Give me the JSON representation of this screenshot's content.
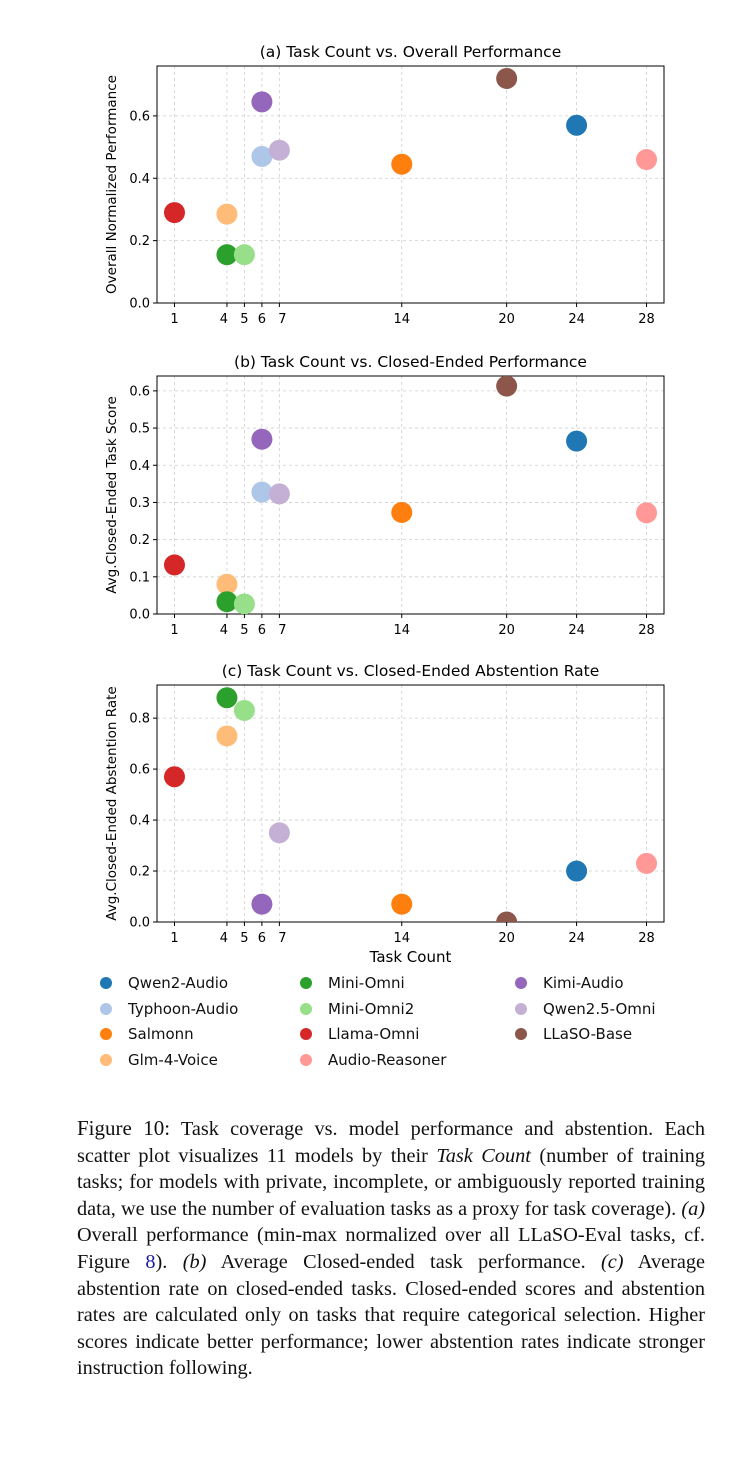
{
  "models": [
    {
      "name": "Qwen2-Audio",
      "color": "#1f77b4",
      "tasks": 24
    },
    {
      "name": "Typhoon-Audio",
      "color": "#aec7e8",
      "tasks": 6
    },
    {
      "name": "Salmonn",
      "color": "#ff7f0e",
      "tasks": 14
    },
    {
      "name": "Glm-4-Voice",
      "color": "#ffbb78",
      "tasks": 4
    },
    {
      "name": "Mini-Omni",
      "color": "#2ca02c",
      "tasks": 4
    },
    {
      "name": "Mini-Omni2",
      "color": "#98df8a",
      "tasks": 5
    },
    {
      "name": "Llama-Omni",
      "color": "#d62728",
      "tasks": 1
    },
    {
      "name": "Audio-Reasoner",
      "color": "#ff9896",
      "tasks": 28
    },
    {
      "name": "Kimi-Audio",
      "color": "#9467bd",
      "tasks": 6
    },
    {
      "name": "Qwen2.5-Omni",
      "color": "#c5b0d5",
      "tasks": 7
    },
    {
      "name": "LLaSO-Base",
      "color": "#8c564b",
      "tasks": 20
    }
  ],
  "chart_data": [
    {
      "type": "scatter",
      "title": "(a) Task Count vs. Overall Performance",
      "xlabel": "",
      "ylabel": "Overall Normalized Performance",
      "xticks": [
        1,
        4,
        5,
        6,
        7,
        14,
        20,
        24,
        28
      ],
      "yticks": [
        "0.0",
        "0.2",
        "0.4",
        "0.6"
      ],
      "xlim": [
        0,
        29
      ],
      "ylim": [
        0,
        0.76
      ],
      "grid": true,
      "values": [
        0.57,
        0.47,
        0.445,
        0.285,
        0.155,
        0.155,
        0.29,
        0.46,
        0.645,
        0.49,
        0.72
      ]
    },
    {
      "type": "scatter",
      "title": "(b) Task Count vs. Closed-Ended Performance",
      "xlabel": "",
      "ylabel": "Avg.Closed-Ended Task Score",
      "xticks": [
        1,
        4,
        5,
        6,
        7,
        14,
        20,
        24,
        28
      ],
      "yticks": [
        "0.0",
        "0.1",
        "0.2",
        "0.3",
        "0.4",
        "0.5",
        "0.6"
      ],
      "xlim": [
        0,
        29
      ],
      "ylim": [
        0,
        0.64
      ],
      "grid": true,
      "values": [
        0.465,
        0.328,
        0.273,
        0.08,
        0.033,
        0.027,
        0.132,
        0.272,
        0.47,
        0.323,
        0.613
      ]
    },
    {
      "type": "scatter",
      "title": "(c) Task Count vs. Closed-Ended Abstention Rate",
      "xlabel": "Task Count",
      "ylabel": "Avg.Closed-Ended Abstention Rate",
      "xticks": [
        1,
        4,
        5,
        6,
        7,
        14,
        20,
        24,
        28
      ],
      "yticks": [
        "0.0",
        "0.2",
        "0.4",
        "0.6",
        "0.8"
      ],
      "xlim": [
        0,
        29
      ],
      "ylim": [
        0,
        0.93
      ],
      "grid": true,
      "values": [
        0.2,
        null,
        0.07,
        0.73,
        0.88,
        0.83,
        0.57,
        0.23,
        0.07,
        0.35,
        0.0
      ]
    }
  ],
  "caption": {
    "label": "Figure 10:",
    "text_1": "Task coverage vs. model performance and abstention. Each scatter plot visualizes 11 models by their ",
    "task_count_italic": "Task Count",
    "text_2": " (number of training tasks; for models with private, incomplete, or ambiguously reported training data, we use the number of evaluation tasks as a proxy for task coverage). ",
    "a": "(a)",
    "text_3": " Overall performance (min-max normalized over all LLaSO-Eval tasks, cf. Figure ",
    "fig_ref": "8",
    "text_4": "). ",
    "b": "(b)",
    "text_5": " Average Closed-ended task performance. ",
    "c": "(c)",
    "text_6": " Average abstention rate on closed-ended tasks. Closed-ended scores and abstention rates are calculated only on tasks that require categorical selection. Higher scores indicate better performance; lower abstention rates indicate stronger instruction following."
  }
}
